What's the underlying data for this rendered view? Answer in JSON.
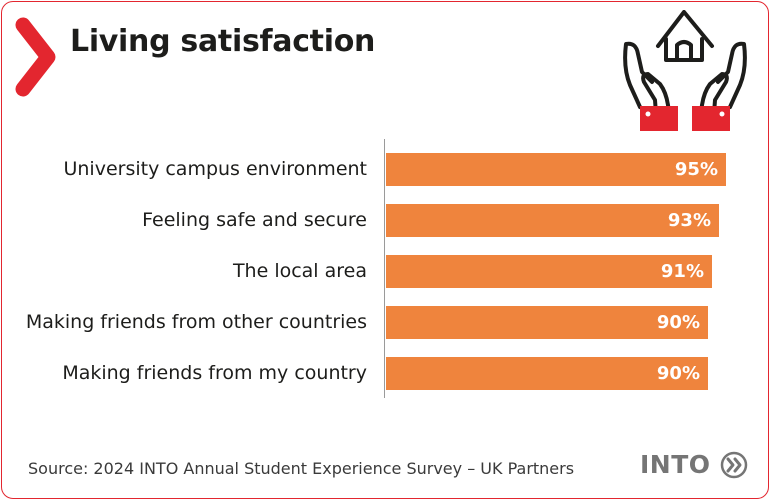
{
  "header": {
    "title": "Living satisfaction",
    "icons": [
      "chevron-right-icon",
      "house-in-hands-icon"
    ]
  },
  "colors": {
    "accent": "#e3262f",
    "bar": "#ef843d",
    "text": "#1d1d1b",
    "brand": "#757575"
  },
  "chart_data": {
    "type": "bar",
    "orientation": "horizontal",
    "categories": [
      "University campus environment",
      "Feeling safe and secure",
      "The local area",
      "Making friends from other countries",
      "Making friends from my country"
    ],
    "values": [
      95,
      93,
      91,
      90,
      90
    ],
    "value_labels": [
      "95%",
      "93%",
      "91%",
      "90%",
      "90%"
    ],
    "xlim": [
      0,
      100
    ],
    "grid": false,
    "legend": "none"
  },
  "footer": {
    "source": "Source: 2024 INTO Annual Student Experience Survey – UK Partners",
    "brand": "INTO",
    "brand_icon": "double-chevron-circle-icon"
  }
}
